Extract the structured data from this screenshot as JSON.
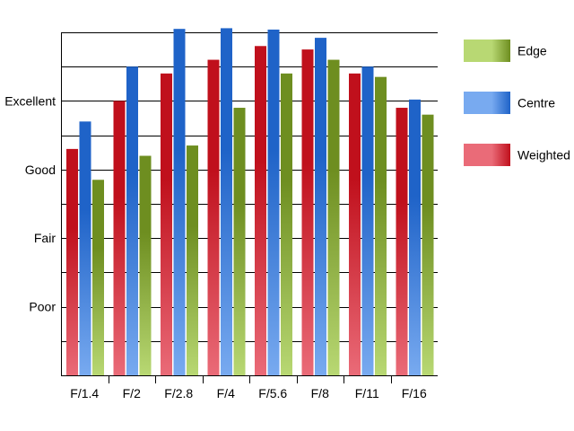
{
  "chart_data": {
    "type": "bar",
    "categories": [
      "F/1.4",
      "F/2",
      "F/2.8",
      "F/4",
      "F/5.6",
      "F/8",
      "F/11",
      "F/16"
    ],
    "y_ticks": [
      {
        "value": 1,
        "label": "Poor"
      },
      {
        "value": 2,
        "label": "Fair"
      },
      {
        "value": 3,
        "label": "Good"
      },
      {
        "value": 4,
        "label": "Excellent"
      }
    ],
    "ylim": [
      0,
      5
    ],
    "grid": true,
    "legend_position": "right",
    "series": [
      {
        "name": "Weighted",
        "color": "#c0101c",
        "light": "#ea6b78",
        "values": [
          3.3,
          4.0,
          4.4,
          4.6,
          4.8,
          4.75,
          4.4,
          3.9
        ]
      },
      {
        "name": "Centre",
        "color": "#1f63c8",
        "light": "#78aaf0",
        "values": [
          3.7,
          4.5,
          5.05,
          5.06,
          5.04,
          4.92,
          4.5,
          4.02
        ]
      },
      {
        "name": "Edge",
        "color": "#6e8e20",
        "light": "#b8d873",
        "values": [
          2.85,
          3.2,
          3.35,
          3.9,
          4.4,
          4.6,
          4.35,
          3.8
        ]
      }
    ],
    "legend_order": [
      "Edge",
      "Centre",
      "Weighted"
    ]
  }
}
